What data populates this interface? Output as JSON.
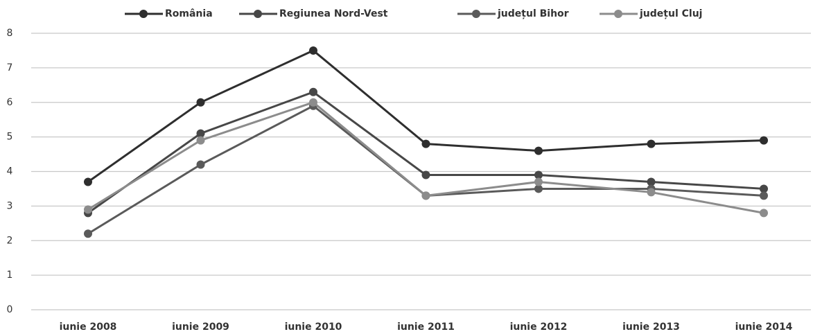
{
  "chart_data": {
    "type": "line",
    "categories": [
      "iunie 2008",
      "iunie 2009",
      "iunie 2010",
      "iunie 2011",
      "iunie 2012",
      "iunie 2013",
      "iunie 2014"
    ],
    "series": [
      {
        "name": "România",
        "color": "#2e2e2e",
        "values": [
          3.7,
          6.0,
          7.5,
          4.8,
          4.6,
          4.8,
          4.9
        ]
      },
      {
        "name": "Regiunea Nord-Vest",
        "color": "#474747",
        "values": [
          2.8,
          5.1,
          6.3,
          3.9,
          3.9,
          3.7,
          3.5
        ]
      },
      {
        "name": "județul Bihor",
        "color": "#5a5a5a",
        "values": [
          2.2,
          4.2,
          5.9,
          3.3,
          3.5,
          3.5,
          3.3
        ]
      },
      {
        "name": "județul Cluj",
        "color": "#8c8c8c",
        "values": [
          2.9,
          4.9,
          6.0,
          3.3,
          3.7,
          3.4,
          2.8
        ]
      }
    ],
    "ylim": [
      0,
      8
    ],
    "yticks": [
      0,
      1,
      2,
      3,
      4,
      5,
      6,
      7,
      8
    ],
    "grid": true,
    "legend": "top"
  }
}
